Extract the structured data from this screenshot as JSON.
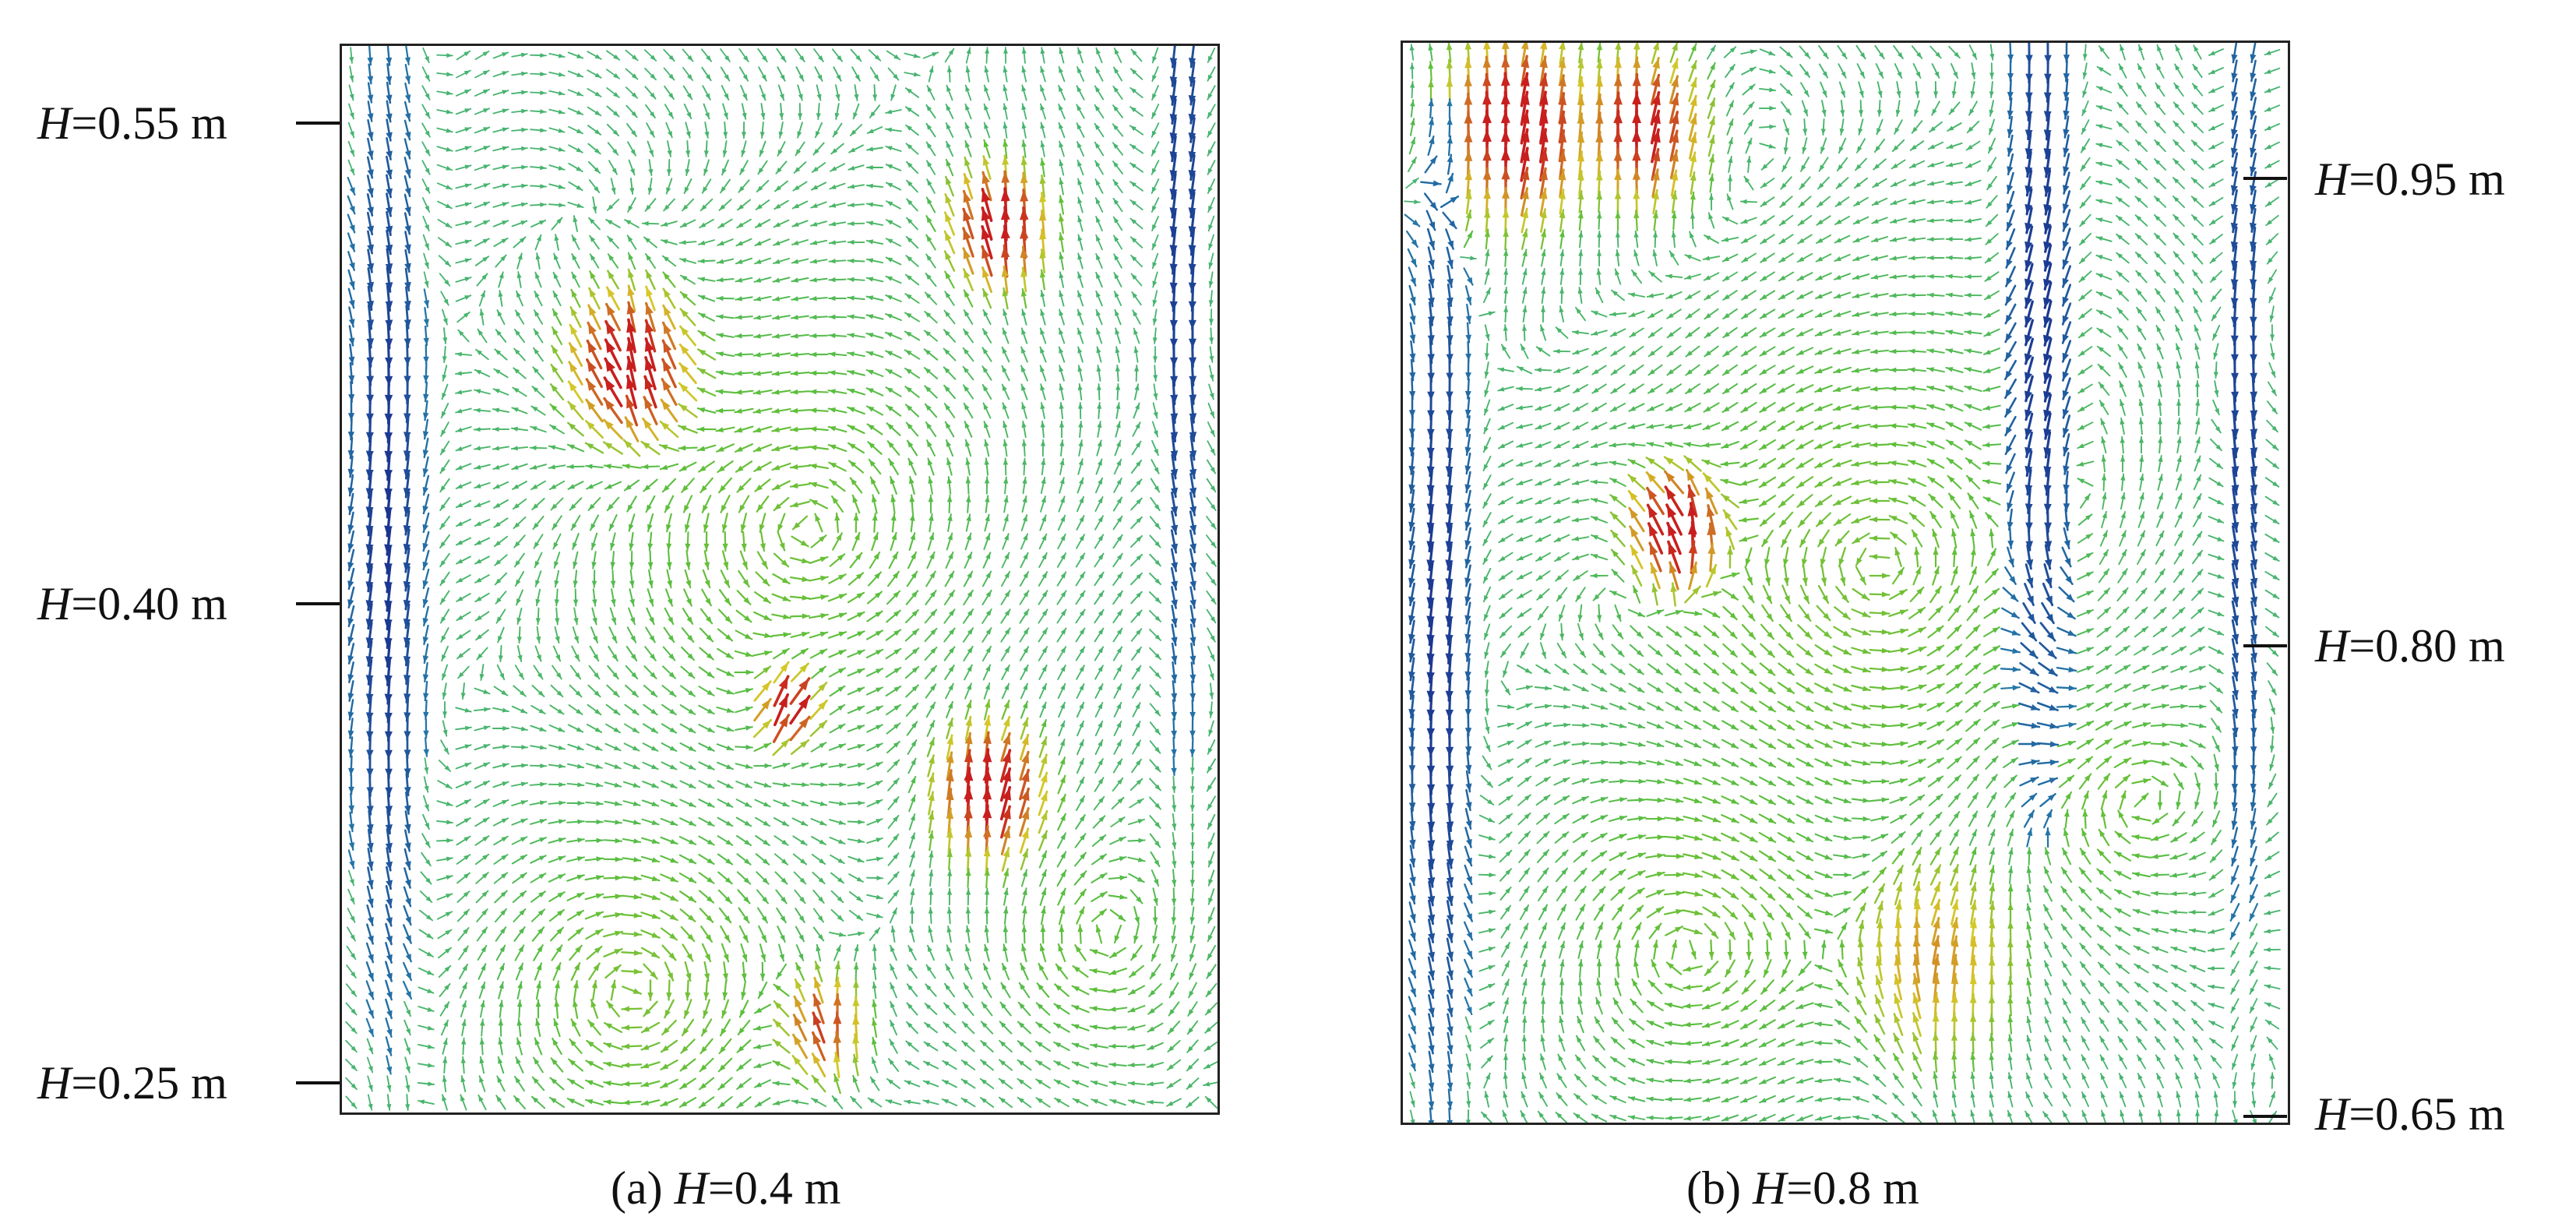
{
  "panels": [
    {
      "id": "a",
      "caption_prefix": "(a) ",
      "caption_var": "H",
      "caption_value": "=0.4 m",
      "height_labels": [
        {
          "var": "H",
          "value": "=0.55 m"
        },
        {
          "var": "H",
          "value": "=0.40 m"
        },
        {
          "var": "H",
          "value": "=0.25 m"
        }
      ]
    },
    {
      "id": "b",
      "caption_prefix": "(b) ",
      "caption_var": "H",
      "caption_value": "=0.8 m",
      "height_labels": [
        {
          "var": "H",
          "value": "=0.95 m"
        },
        {
          "var": "H",
          "value": "=0.80 m"
        },
        {
          "var": "H",
          "value": "=0.65 m"
        }
      ]
    }
  ],
  "colors": {
    "low_speed": "#1a2a8c",
    "mid_low": "#2aa6b8",
    "mid": "#5cbf3a",
    "mid_high": "#d6c829",
    "high_speed": "#c81e1e",
    "frame": "#222222"
  }
}
